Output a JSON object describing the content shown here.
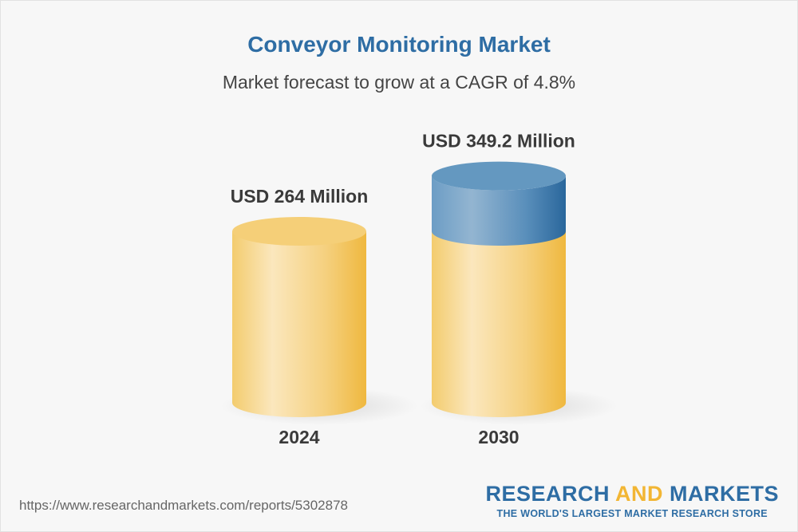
{
  "header": {
    "title": "Conveyor Monitoring Market",
    "subtitle": "Market forecast to grow at a CAGR of 4.8%"
  },
  "chart_data": {
    "type": "bar",
    "style": "3d-cylinder",
    "categories": [
      "2024",
      "2030"
    ],
    "values": [
      264,
      349.2
    ],
    "unit": "USD Million",
    "data_labels": [
      "USD 264 Million",
      "USD 349.2 Million"
    ],
    "colors": {
      "base": "#f2c45a",
      "growth": "#2e6da4"
    },
    "title": "Conveyor Monitoring Market",
    "subtitle": "Market forecast to grow at a CAGR of 4.8%"
  },
  "footer": {
    "url": "https://www.researchandmarkets.com/reports/5302878",
    "logo_part1": "RESEARCH ",
    "logo_part2": "AND",
    "logo_part3": " MARKETS",
    "tagline": "THE WORLD'S LARGEST MARKET RESEARCH STORE"
  }
}
